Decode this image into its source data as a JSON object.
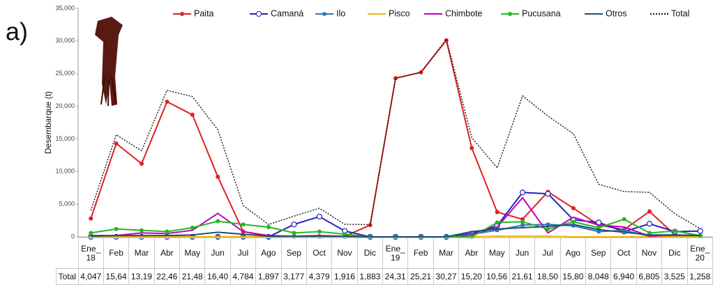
{
  "chart_data": {
    "type": "line",
    "annotation": "a)",
    "y_label": "Desembarque (t)",
    "categories": [
      "Ene_\n18",
      "Feb",
      "Mar",
      "Abr",
      "May",
      "Jun",
      "Jul",
      "Ago",
      "Sep",
      "Oct",
      "Nov",
      "Dic",
      "Ene_\n19",
      "Feb",
      "Mar",
      "Abr",
      "May",
      "Jun",
      "Jul",
      "Ago",
      "Sep",
      "Oct",
      "Nov",
      "Dic",
      "Ene_\n20"
    ],
    "ylim": [
      0,
      35000
    ],
    "yticks": [
      0,
      {
        "value": 5000,
        "label": "5,000"
      },
      {
        "value": 10000,
        "label": "10,000"
      },
      {
        "value": 15000,
        "label": "15,000"
      },
      {
        "value": 20000,
        "label": "20,000"
      },
      {
        "value": 25000,
        "label": "25,000"
      },
      {
        "value": 30000,
        "label": "30,000"
      },
      {
        "value": 35000,
        "label": "35,000"
      }
    ],
    "grid": false,
    "legend": "top",
    "series": [
      {
        "name": "Paita",
        "color": "#e02020",
        "marker": "circle",
        "values": [
          2800,
          14300,
          11200,
          20700,
          18700,
          9200,
          800,
          100,
          100,
          100,
          100,
          1800,
          24300,
          25200,
          30100,
          13600,
          3800,
          2700,
          6900,
          4400,
          1800,
          1100,
          3900,
          300,
          200
        ]
      },
      {
        "name": "Camaná",
        "color": "#2222bb",
        "marker": "open-circle",
        "values": [
          0,
          0,
          0,
          0,
          0,
          0,
          0,
          0,
          1900,
          3100,
          900,
          0,
          0,
          0,
          0,
          500,
          1700,
          6800,
          6600,
          2600,
          2200,
          800,
          2000,
          800,
          900
        ]
      },
      {
        "name": "Ilo",
        "color": "#2e75b6",
        "marker": "square",
        "values": [
          100,
          100,
          100,
          100,
          0,
          0,
          0,
          0,
          0,
          0,
          0,
          0,
          0,
          0,
          0,
          400,
          1000,
          1800,
          1900,
          1700,
          800,
          1000,
          100,
          100,
          100
        ]
      },
      {
        "name": "Pisco",
        "color": "#f0b400",
        "marker": "dash",
        "values": [
          0,
          0,
          0,
          0,
          0,
          0,
          0,
          0,
          0,
          0,
          0,
          0,
          0,
          0,
          0,
          0,
          100,
          100,
          100,
          0,
          0,
          0,
          0,
          0,
          0
        ]
      },
      {
        "name": "Chimbote",
        "color": "#c000c0",
        "marker": "none",
        "values": [
          200,
          200,
          600,
          500,
          1000,
          3600,
          800,
          200,
          100,
          200,
          100,
          0,
          0,
          0,
          0,
          300,
          1500,
          6000,
          600,
          3000,
          1800,
          1500,
          100,
          300,
          200
        ]
      },
      {
        "name": "Pucusana",
        "color": "#22b822",
        "marker": "circle",
        "values": [
          600,
          1200,
          1000,
          800,
          1400,
          2400,
          1900,
          1500,
          600,
          800,
          400,
          0,
          0,
          0,
          0,
          0,
          2200,
          2300,
          1200,
          2300,
          1400,
          2700,
          600,
          900,
          200
        ]
      },
      {
        "name": "Otros",
        "color": "#1f4e79",
        "marker": "none",
        "values": [
          100,
          200,
          200,
          200,
          300,
          700,
          400,
          100,
          100,
          100,
          100,
          0,
          0,
          0,
          0,
          800,
          1200,
          1400,
          1600,
          1900,
          1100,
          700,
          300,
          300,
          200
        ]
      },
      {
        "name": "Total",
        "color": "#111111",
        "marker": "none",
        "line_style": "dotted",
        "values": [
          4047,
          15640,
          13190,
          22460,
          21480,
          16400,
          4784,
          1897,
          3177,
          4379,
          1916,
          1883,
          24310,
          25210,
          30270,
          15200,
          10560,
          21610,
          18500,
          15800,
          8048,
          6940,
          6805,
          3525,
          1258
        ],
        "value_labels": [
          "4,047",
          "15,64",
          "13,19",
          "22,46",
          "21,48",
          "16,40",
          "4,784",
          "1,897",
          "3,177",
          "4,379",
          "1,916",
          "1,883",
          "24,31",
          "25,21",
          "30,27",
          "15,20",
          "10,56",
          "21,61",
          "18,50",
          "15,80",
          "8,048",
          "6,940",
          "6,805",
          "3,525",
          "1,258"
        ]
      }
    ]
  }
}
